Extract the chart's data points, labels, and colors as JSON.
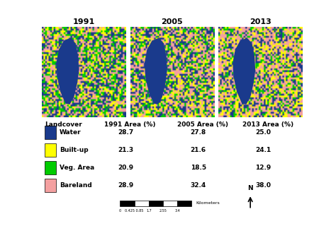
{
  "years": [
    "1991",
    "2005",
    "2013"
  ],
  "year_labels": [
    "1991",
    "2005",
    "2013"
  ],
  "landcover_types": [
    "Water",
    "Built-up",
    "Veg. Area",
    "Bareland"
  ],
  "legend_colors": [
    "#1a3a8c",
    "#ffff00",
    "#00cc00",
    "#f4a0a0"
  ],
  "area_1991": [
    28.7,
    21.3,
    20.9,
    28.9
  ],
  "area_2005": [
    27.8,
    21.6,
    18.5,
    32.4
  ],
  "area_2013": [
    25.0,
    24.1,
    12.9,
    38.0
  ],
  "header": [
    "Landcover",
    "1991 Area (%)",
    "2005 Area (%)",
    "2013 Area (%)"
  ],
  "bg_color": "#ffffff",
  "text_color": "#000000",
  "scale_bar_label": "Kilometers",
  "scale_ticks": [
    "0",
    "0.425 0.85",
    "1.7",
    "2.55",
    "3.4"
  ]
}
